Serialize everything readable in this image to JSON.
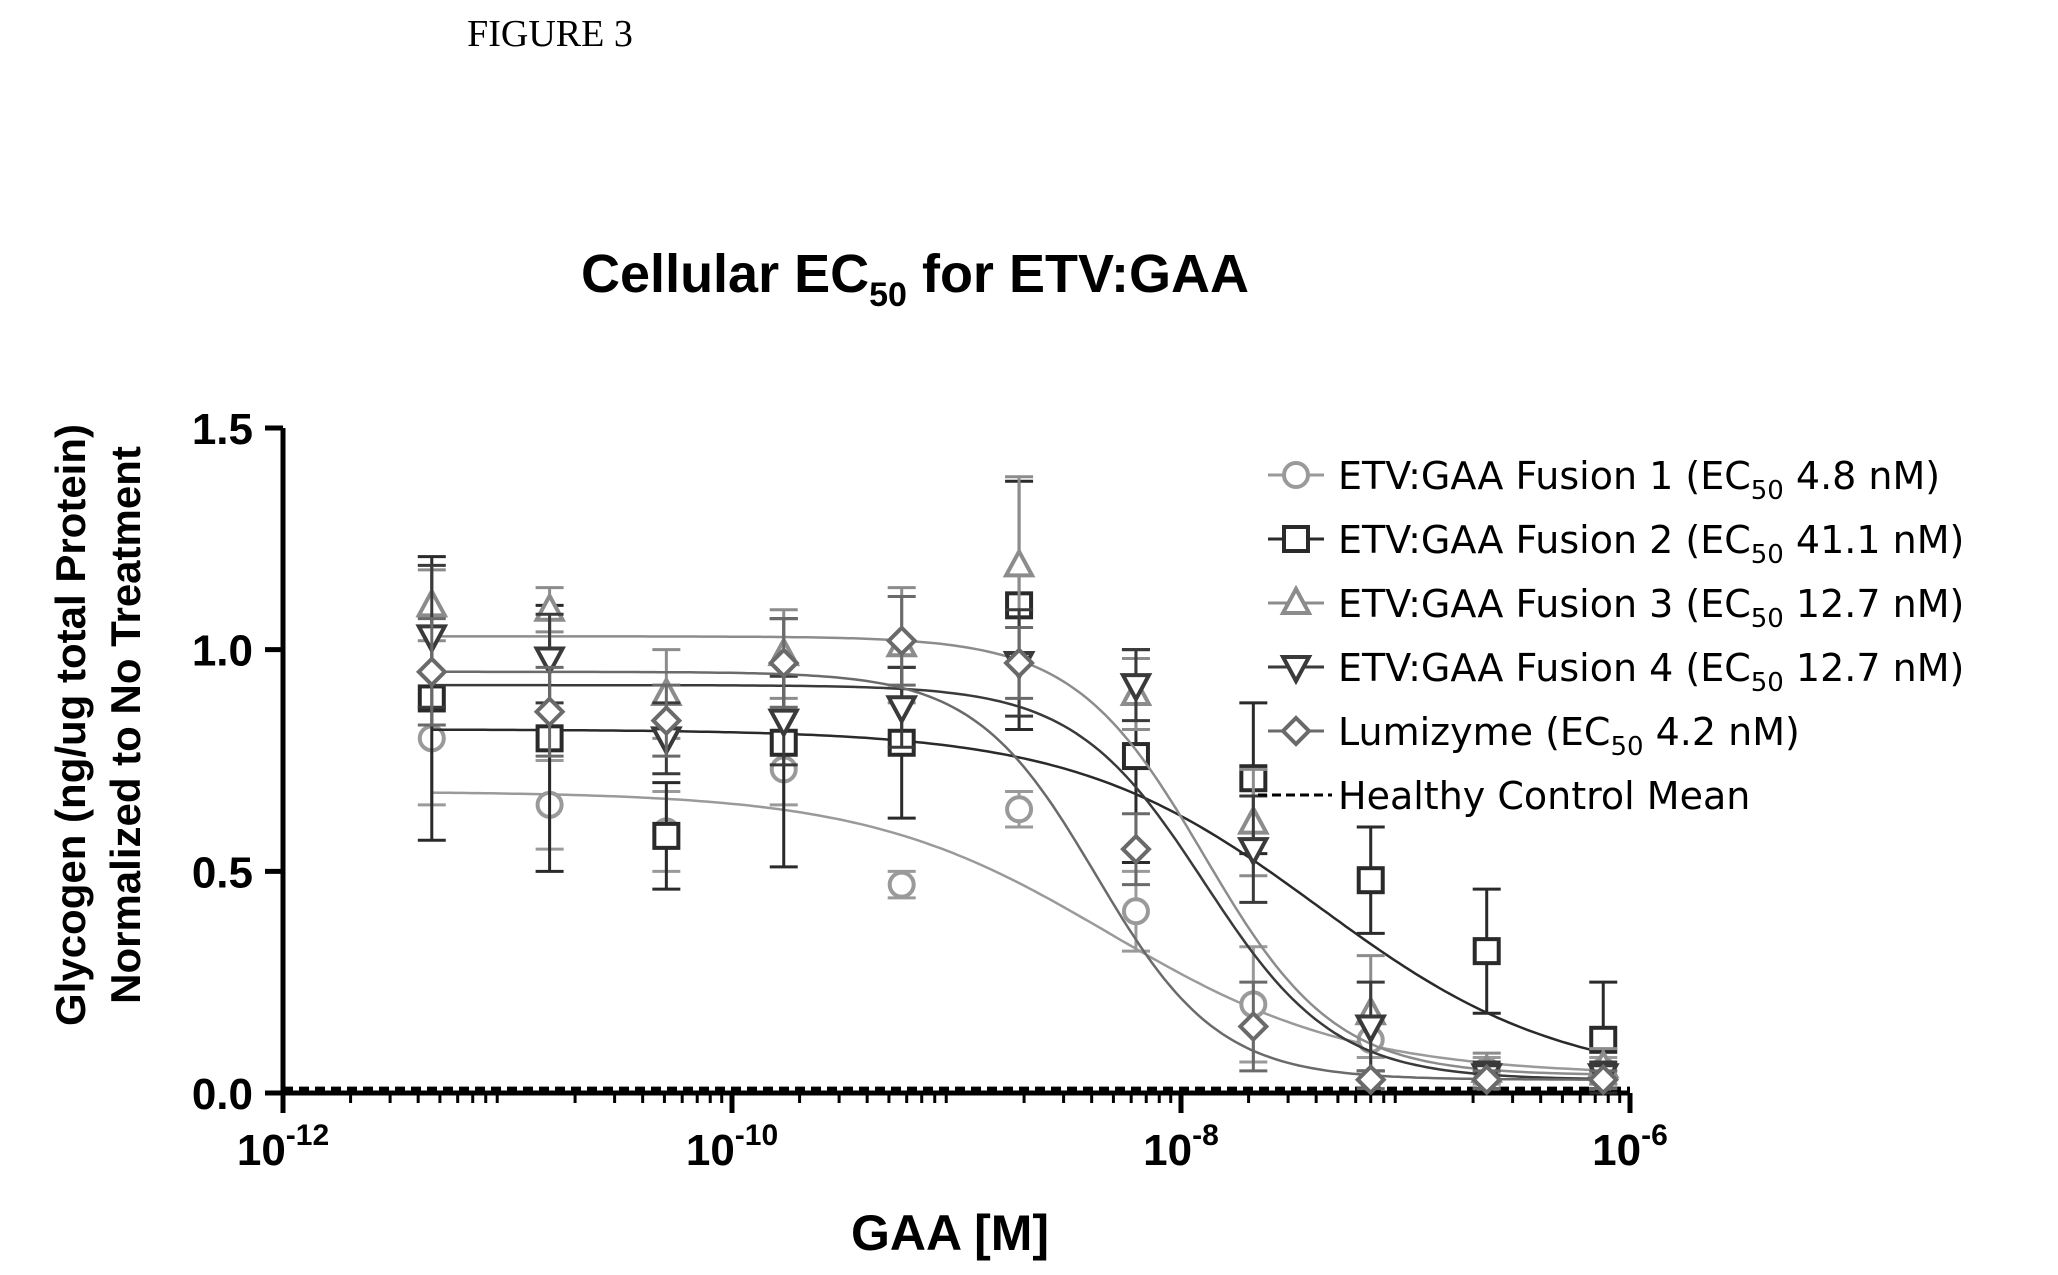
{
  "figure_caption": "FIGURE 3",
  "colors": {
    "fusion1": "#9a9a9a",
    "fusion2": "#2a2a2a",
    "fusion3": "#8c8c8c",
    "fusion4": "#3a3a3a",
    "lumizyme": "#6a6a6a",
    "healthy": "#000000"
  },
  "chart_data": {
    "type": "scatter",
    "title": {
      "main": "Cellular EC",
      "sub": "50",
      "suffix": " for ETV:GAA"
    },
    "xlabel": "GAA [M]",
    "ylabel": [
      "Glycogen (ng/ug total Protein)",
      "Normalized to No Treatment"
    ],
    "xscale": "log",
    "xlim": [
      1e-12,
      1e-06
    ],
    "ylim": [
      0,
      1.5
    ],
    "xticks": [
      {
        "value": 1e-12,
        "base": "10",
        "exp": "-12"
      },
      {
        "value": 1e-10,
        "base": "10",
        "exp": "-10"
      },
      {
        "value": 1e-08,
        "base": "10",
        "exp": "-8"
      },
      {
        "value": 1e-06,
        "base": "10",
        "exp": "-6"
      }
    ],
    "yticks": [
      {
        "value": 0,
        "label": "0.0"
      },
      {
        "value": 0.5,
        "label": "0.5"
      },
      {
        "value": 1.0,
        "label": "1.0"
      },
      {
        "value": 1.5,
        "label": "1.5"
      }
    ],
    "legend_position": "top-right",
    "series": [
      {
        "key": "fusion1",
        "legend_prefix": "ETV:GAA Fusion 1 (EC",
        "legend_sub": "50",
        "legend_suffix": " 4.8 nM)",
        "marker": "circle",
        "fit": {
          "top": 0.68,
          "bottom": 0.04,
          "ec50": 4.8e-09,
          "hill": 0.8
        },
        "points": [
          {
            "x": 4.6e-12,
            "y": 0.8,
            "err": 0.15
          },
          {
            "x": 1.54e-11,
            "y": 0.65,
            "err": 0.1
          },
          {
            "x": 5.1e-11,
            "y": 0.59,
            "err": 0.09
          },
          {
            "x": 1.7e-10,
            "y": 0.73,
            "err": 0.08
          },
          {
            "x": 5.7e-10,
            "y": 0.47,
            "err": 0.03
          },
          {
            "x": 1.9e-09,
            "y": 0.64,
            "err": 0.04
          },
          {
            "x": 6.3e-09,
            "y": 0.41,
            "err": 0.09
          },
          {
            "x": 2.1e-08,
            "y": 0.2,
            "err": 0.13
          },
          {
            "x": 7e-08,
            "y": 0.12,
            "err": 0.04
          },
          {
            "x": 2.3e-07,
            "y": 0.05,
            "err": 0.03
          },
          {
            "x": 7.6e-07,
            "y": 0.05,
            "err": 0.03
          }
        ]
      },
      {
        "key": "fusion2",
        "legend_prefix": "ETV:GAA Fusion 2 (EC",
        "legend_sub": "50",
        "legend_suffix": " 41.1 nM)",
        "marker": "square",
        "fit": {
          "top": 0.82,
          "bottom": 0.02,
          "ec50": 4.11e-08,
          "hill": 0.8
        },
        "points": [
          {
            "x": 4.6e-12,
            "y": 0.89,
            "err": 0.32
          },
          {
            "x": 1.54e-11,
            "y": 0.8,
            "err": 0.3
          },
          {
            "x": 5.1e-11,
            "y": 0.58,
            "err": 0.12
          },
          {
            "x": 1.7e-10,
            "y": 0.79,
            "err": 0.28
          },
          {
            "x": 5.7e-10,
            "y": 0.79,
            "err": 0.17
          },
          {
            "x": 1.9e-09,
            "y": 1.1,
            "err": 0.28
          },
          {
            "x": 6.3e-09,
            "y": 0.76,
            "err": 0.24
          },
          {
            "x": 2.1e-08,
            "y": 0.71,
            "err": 0.17
          },
          {
            "x": 7e-08,
            "y": 0.48,
            "err": 0.12
          },
          {
            "x": 2.3e-07,
            "y": 0.32,
            "err": 0.14
          },
          {
            "x": 7.6e-07,
            "y": 0.12,
            "err": 0.13
          }
        ]
      },
      {
        "key": "fusion3",
        "legend_prefix": "ETV:GAA Fusion 3 (EC",
        "legend_sub": "50",
        "legend_suffix": " 12.7 nM)",
        "marker": "triangle-up",
        "fit": {
          "top": 1.03,
          "bottom": 0.04,
          "ec50": 1.27e-08,
          "hill": 1.5
        },
        "points": [
          {
            "x": 4.6e-12,
            "y": 1.1,
            "err": 0.08
          },
          {
            "x": 1.54e-11,
            "y": 1.09,
            "err": 0.05
          },
          {
            "x": 5.1e-11,
            "y": 0.9,
            "err": 0.1
          },
          {
            "x": 1.7e-10,
            "y": 0.99,
            "err": 0.1
          },
          {
            "x": 5.7e-10,
            "y": 1.01,
            "err": 0.13
          },
          {
            "x": 1.9e-09,
            "y": 1.19,
            "err": 0.2
          },
          {
            "x": 6.3e-09,
            "y": 0.9,
            "err": 0.08
          },
          {
            "x": 2.1e-08,
            "y": 0.61,
            "err": 0.12
          },
          {
            "x": 7e-08,
            "y": 0.18,
            "err": 0.13
          },
          {
            "x": 2.3e-07,
            "y": 0.05,
            "err": 0.04
          },
          {
            "x": 7.6e-07,
            "y": 0.06,
            "err": 0.04
          }
        ]
      },
      {
        "key": "fusion4",
        "legend_prefix": "ETV:GAA Fusion 4 (EC",
        "legend_sub": "50",
        "legend_suffix": " 12.7 nM)",
        "marker": "triangle-down",
        "fit": {
          "top": 0.92,
          "bottom": 0.03,
          "ec50": 1.27e-08,
          "hill": 1.5
        },
        "points": [
          {
            "x": 4.6e-12,
            "y": 1.03,
            "err": 0.16
          },
          {
            "x": 1.54e-11,
            "y": 0.98,
            "err": 0.1
          },
          {
            "x": 5.1e-11,
            "y": 0.8,
            "err": 0.08
          },
          {
            "x": 1.7e-10,
            "y": 0.84,
            "err": 0.1
          },
          {
            "x": 5.7e-10,
            "y": 0.87,
            "err": 0.09
          },
          {
            "x": 1.9e-09,
            "y": 0.97,
            "err": 0.12
          },
          {
            "x": 6.3e-09,
            "y": 0.92,
            "err": 0.08
          },
          {
            "x": 2.1e-08,
            "y": 0.55,
            "err": 0.12
          },
          {
            "x": 7e-08,
            "y": 0.15,
            "err": 0.1
          },
          {
            "x": 2.3e-07,
            "y": 0.04,
            "err": 0.03
          },
          {
            "x": 7.6e-07,
            "y": 0.04,
            "err": 0.03
          }
        ]
      },
      {
        "key": "lumizyme",
        "legend_prefix": "Lumizyme (EC",
        "legend_sub": "50",
        "legend_suffix": " 4.2 nM)",
        "marker": "diamond",
        "fit": {
          "top": 0.95,
          "bottom": 0.03,
          "ec50": 4.2e-09,
          "hill": 1.6
        },
        "points": [
          {
            "x": 4.6e-12,
            "y": 0.95,
            "err": 0.12
          },
          {
            "x": 1.54e-11,
            "y": 0.86,
            "err": 0.1
          },
          {
            "x": 5.1e-11,
            "y": 0.84,
            "err": 0.08
          },
          {
            "x": 1.7e-10,
            "y": 0.97,
            "err": 0.1
          },
          {
            "x": 5.7e-10,
            "y": 1.02,
            "err": 0.1
          },
          {
            "x": 1.9e-09,
            "y": 0.97,
            "err": 0.08
          },
          {
            "x": 6.3e-09,
            "y": 0.55,
            "err": 0.08
          },
          {
            "x": 2.1e-08,
            "y": 0.15,
            "err": 0.1
          },
          {
            "x": 7e-08,
            "y": 0.03,
            "err": 0.02
          },
          {
            "x": 2.3e-07,
            "y": 0.03,
            "err": 0.02
          },
          {
            "x": 7.6e-07,
            "y": 0.03,
            "err": 0.02
          }
        ]
      }
    ],
    "reference_line": {
      "key": "healthy",
      "label": "Healthy Control Mean",
      "y": 0.01
    }
  }
}
